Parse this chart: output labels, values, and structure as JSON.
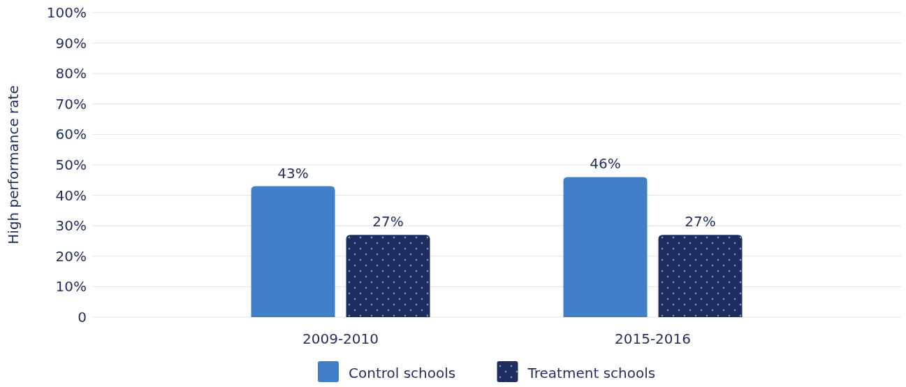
{
  "chart_data": {
    "type": "bar",
    "ylabel": "High performance rate",
    "categories": [
      "2009-2010",
      "2015-2016"
    ],
    "series": [
      {
        "name": "Control schools",
        "color": "#4180c9",
        "values": [
          43,
          46
        ],
        "value_labels": [
          "43%",
          "46%"
        ]
      },
      {
        "name": "Treatment schools",
        "color": "#1f2c5e",
        "values": [
          27,
          27
        ],
        "value_labels": [
          "27%",
          "27%"
        ]
      }
    ],
    "ylim": [
      0,
      100
    ],
    "yticks": [
      {
        "value": 0,
        "label": "0"
      },
      {
        "value": 10,
        "label": "10%"
      },
      {
        "value": 20,
        "label": "20%"
      },
      {
        "value": 30,
        "label": "30%"
      },
      {
        "value": 40,
        "label": "40%"
      },
      {
        "value": 50,
        "label": "50%"
      },
      {
        "value": 60,
        "label": "60%"
      },
      {
        "value": 70,
        "label": "70%"
      },
      {
        "value": 80,
        "label": "80%"
      },
      {
        "value": 90,
        "label": "90%"
      },
      {
        "value": 100,
        "label": "100%"
      }
    ],
    "grid": "y",
    "legend": "bottom"
  }
}
